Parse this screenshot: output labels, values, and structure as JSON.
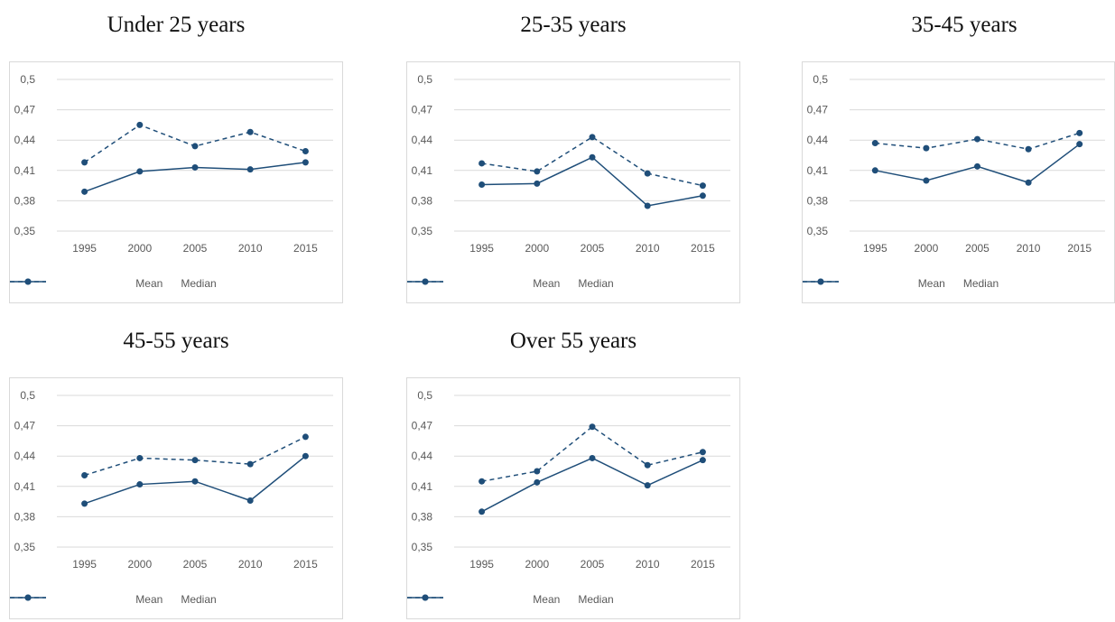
{
  "chart_data": [
    {
      "type": "line",
      "title": "Under 25 years",
      "categories": [
        "1995",
        "2000",
        "2005",
        "2010",
        "2015"
      ],
      "yticks": [
        "0,5",
        "0,47",
        "0,44",
        "0,41",
        "0,38",
        "0,35"
      ],
      "ylim": [
        0.35,
        0.5
      ],
      "legend": "bottom",
      "series": [
        {
          "name": "Mean",
          "values": [
            0.389,
            0.409,
            0.413,
            0.411,
            0.418
          ]
        },
        {
          "name": "Median",
          "values": [
            0.418,
            0.455,
            0.434,
            0.448,
            0.429
          ]
        }
      ]
    },
    {
      "type": "line",
      "title": "25-35 years",
      "categories": [
        "1995",
        "2000",
        "2005",
        "2010",
        "2015"
      ],
      "yticks": [
        "0,5",
        "0,47",
        "0,44",
        "0,41",
        "0,38",
        "0,35"
      ],
      "ylim": [
        0.35,
        0.5
      ],
      "legend": "bottom",
      "series": [
        {
          "name": "Mean",
          "values": [
            0.396,
            0.397,
            0.423,
            0.375,
            0.385
          ]
        },
        {
          "name": "Median",
          "values": [
            0.417,
            0.409,
            0.443,
            0.407,
            0.395
          ]
        }
      ]
    },
    {
      "type": "line",
      "title": "35-45 years",
      "categories": [
        "1995",
        "2000",
        "2005",
        "2010",
        "2015"
      ],
      "yticks": [
        "0,5",
        "0,47",
        "0,44",
        "0,41",
        "0,38",
        "0,35"
      ],
      "ylim": [
        0.35,
        0.5
      ],
      "legend": "bottom",
      "series": [
        {
          "name": "Mean",
          "values": [
            0.41,
            0.4,
            0.414,
            0.398,
            0.436
          ]
        },
        {
          "name": "Median",
          "values": [
            0.437,
            0.432,
            0.441,
            0.431,
            0.447
          ]
        }
      ]
    },
    {
      "type": "line",
      "title": "45-55 years",
      "categories": [
        "1995",
        "2000",
        "2005",
        "2010",
        "2015"
      ],
      "yticks": [
        "0,5",
        "0,47",
        "0,44",
        "0,41",
        "0,38",
        "0,35"
      ],
      "ylim": [
        0.35,
        0.5
      ],
      "legend": "bottom",
      "series": [
        {
          "name": "Mean",
          "values": [
            0.393,
            0.412,
            0.415,
            0.396,
            0.44
          ]
        },
        {
          "name": "Median",
          "values": [
            0.421,
            0.438,
            0.436,
            0.432,
            0.459
          ]
        }
      ]
    },
    {
      "type": "line",
      "title": "Over 55 years",
      "categories": [
        "1995",
        "2000",
        "2005",
        "2010",
        "2015"
      ],
      "yticks": [
        "0,5",
        "0,47",
        "0,44",
        "0,41",
        "0,38",
        "0,35"
      ],
      "ylim": [
        0.35,
        0.5
      ],
      "legend": "bottom",
      "series": [
        {
          "name": "Mean",
          "values": [
            0.385,
            0.414,
            0.438,
            0.411,
            0.436
          ]
        },
        {
          "name": "Median",
          "values": [
            0.415,
            0.425,
            0.469,
            0.431,
            0.444
          ]
        }
      ]
    }
  ],
  "style": {
    "line_color": "#1f4e79",
    "grid_color": "#d9d9d9",
    "tick_color": "#595959"
  }
}
